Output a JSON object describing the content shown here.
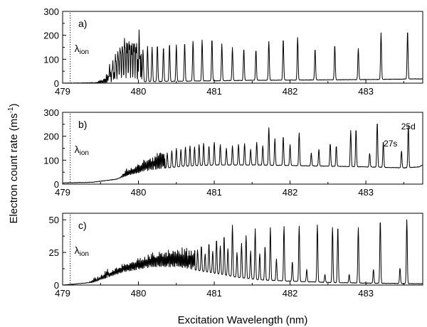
{
  "chart_data": [
    {
      "type": "line",
      "panel_tag": "a)",
      "ion_label": "λ",
      "ion_sub": "ion",
      "ion_position": 479.1,
      "xlim": [
        479,
        483.75
      ],
      "ylim": [
        0,
        300
      ],
      "xticks": [
        "479",
        "480",
        "481",
        "482",
        "483"
      ],
      "xtick_values": [
        479,
        480,
        481,
        482,
        483
      ],
      "yticks": [
        "0",
        "100",
        "200",
        "300"
      ],
      "ytick_values": [
        0,
        100,
        200,
        300
      ],
      "baseline": [
        [
          479.0,
          0
        ],
        [
          479.3,
          1
        ],
        [
          479.6,
          3
        ],
        [
          480.0,
          6
        ],
        [
          480.5,
          8
        ],
        [
          481.0,
          10
        ],
        [
          481.5,
          12
        ],
        [
          482.0,
          13
        ],
        [
          482.5,
          14
        ],
        [
          483.0,
          15
        ],
        [
          483.5,
          17
        ],
        [
          483.75,
          18
        ]
      ],
      "onset": 479.45,
      "dense_start": 479.6,
      "dense_end": 480.05,
      "peaks": [
        [
          479.62,
          55
        ],
        [
          479.66,
          70
        ],
        [
          479.7,
          90
        ],
        [
          479.73,
          115
        ],
        [
          479.76,
          125
        ],
        [
          479.79,
          135
        ],
        [
          479.82,
          150
        ],
        [
          479.85,
          130
        ],
        [
          479.88,
          140
        ],
        [
          479.91,
          120
        ],
        [
          479.94,
          135
        ],
        [
          479.97,
          115
        ],
        [
          480.01,
          150
        ],
        [
          480.06,
          140
        ],
        [
          480.12,
          155
        ],
        [
          480.18,
          150
        ],
        [
          480.25,
          160
        ],
        [
          480.33,
          150
        ],
        [
          480.41,
          165
        ],
        [
          480.5,
          160
        ],
        [
          480.61,
          170
        ],
        [
          480.72,
          175
        ],
        [
          480.84,
          180
        ],
        [
          480.97,
          185
        ],
        [
          481.1,
          165
        ],
        [
          481.24,
          150
        ],
        [
          481.39,
          145
        ],
        [
          481.55,
          140
        ],
        [
          481.72,
          175
        ],
        [
          481.91,
          185
        ],
        [
          482.1,
          190
        ],
        [
          482.33,
          145
        ],
        [
          482.59,
          160
        ],
        [
          482.9,
          145
        ],
        [
          483.2,
          210
        ],
        [
          483.55,
          220
        ]
      ]
    },
    {
      "type": "line",
      "panel_tag": "b)",
      "ion_label": "λ",
      "ion_sub": "ion",
      "ion_position": 479.1,
      "xlim": [
        479,
        483.75
      ],
      "ylim": [
        0,
        300
      ],
      "xticks": [
        "479",
        "480",
        "481",
        "482",
        "483"
      ],
      "xtick_values": [
        479,
        480,
        481,
        482,
        483
      ],
      "yticks": [
        "0",
        "100",
        "200",
        "300"
      ],
      "ytick_values": [
        0,
        100,
        200,
        300
      ],
      "annotations": [
        "25d",
        "27s"
      ],
      "baseline": [
        [
          479.0,
          5
        ],
        [
          479.4,
          8
        ],
        [
          479.7,
          20
        ],
        [
          479.9,
          40
        ],
        [
          480.1,
          55
        ],
        [
          480.3,
          65
        ],
        [
          480.6,
          75
        ],
        [
          481.0,
          80
        ],
        [
          481.5,
          80
        ],
        [
          482.0,
          78
        ],
        [
          482.5,
          75
        ],
        [
          483.0,
          72
        ],
        [
          483.5,
          68
        ],
        [
          483.7,
          72
        ],
        [
          483.75,
          80
        ]
      ],
      "onset": 479.75,
      "dense_start": 479.85,
      "dense_end": 480.35,
      "peaks": [
        [
          480.38,
          130
        ],
        [
          480.44,
          140
        ],
        [
          480.5,
          150
        ],
        [
          480.56,
          145
        ],
        [
          480.62,
          155
        ],
        [
          480.68,
          160
        ],
        [
          480.74,
          155
        ],
        [
          480.8,
          165
        ],
        [
          480.86,
          170
        ],
        [
          480.93,
          160
        ],
        [
          481.0,
          175
        ],
        [
          481.08,
          165
        ],
        [
          481.16,
          150
        ],
        [
          481.24,
          160
        ],
        [
          481.32,
          165
        ],
        [
          481.4,
          170
        ],
        [
          481.48,
          145
        ],
        [
          481.56,
          175
        ],
        [
          481.64,
          160
        ],
        [
          481.72,
          235
        ],
        [
          481.8,
          190
        ],
        [
          481.91,
          200
        ],
        [
          482.0,
          165
        ],
        [
          482.12,
          215
        ],
        [
          482.28,
          130
        ],
        [
          482.38,
          145
        ],
        [
          482.53,
          170
        ],
        [
          482.61,
          160
        ],
        [
          482.8,
          225
        ],
        [
          482.87,
          230
        ],
        [
          483.05,
          130
        ],
        [
          483.15,
          260
        ],
        [
          483.23,
          180
        ],
        [
          483.47,
          140
        ],
        [
          483.56,
          245
        ]
      ]
    },
    {
      "type": "line",
      "panel_tag": "c)",
      "ion_label": "λ",
      "ion_sub": "ion",
      "ion_position": 479.1,
      "xlim": [
        479,
        483.75
      ],
      "ylim": [
        0,
        55
      ],
      "xticks": [
        "479",
        "480",
        "481",
        "482",
        "483"
      ],
      "xtick_values": [
        479,
        480,
        481,
        482,
        483
      ],
      "yticks": [
        "0",
        "25",
        "50"
      ],
      "ytick_values": [
        0,
        25,
        50
      ],
      "baseline": [
        [
          479.0,
          0
        ],
        [
          479.2,
          1
        ],
        [
          479.4,
          2
        ],
        [
          479.6,
          6
        ],
        [
          479.8,
          10
        ],
        [
          480.0,
          12
        ],
        [
          480.2,
          14
        ],
        [
          480.5,
          14
        ],
        [
          480.8,
          11
        ],
        [
          481.0,
          9
        ],
        [
          481.3,
          6
        ],
        [
          481.6,
          4
        ],
        [
          482.0,
          3
        ],
        [
          482.5,
          2
        ],
        [
          483.0,
          1.5
        ],
        [
          483.75,
          1
        ]
      ],
      "onset": 479.3,
      "dense_start": 479.6,
      "dense_end": 480.75,
      "peaks": [
        [
          480.78,
          27
        ],
        [
          480.83,
          30
        ],
        [
          480.88,
          24
        ],
        [
          480.93,
          32
        ],
        [
          480.98,
          26
        ],
        [
          481.03,
          35
        ],
        [
          481.08,
          30
        ],
        [
          481.13,
          38
        ],
        [
          481.18,
          28
        ],
        [
          481.24,
          46
        ],
        [
          481.3,
          25
        ],
        [
          481.36,
          32
        ],
        [
          481.42,
          38
        ],
        [
          481.48,
          26
        ],
        [
          481.54,
          43
        ],
        [
          481.6,
          24
        ],
        [
          481.67,
          30
        ],
        [
          481.74,
          44
        ],
        [
          481.82,
          20
        ],
        [
          481.92,
          45
        ],
        [
          482.03,
          18
        ],
        [
          482.12,
          45
        ],
        [
          482.22,
          12
        ],
        [
          482.36,
          46
        ],
        [
          482.46,
          8
        ],
        [
          482.56,
          44
        ],
        [
          482.63,
          45
        ],
        [
          482.78,
          8
        ],
        [
          482.9,
          44
        ],
        [
          483.1,
          12
        ],
        [
          483.19,
          50
        ],
        [
          483.45,
          13
        ],
        [
          483.54,
          50
        ]
      ]
    }
  ],
  "x_axis_label": "Excitation Wavelength (nm)",
  "y_axis_label": "Electron count rate (ms",
  "y_axis_label_sup": "-1",
  "y_axis_label_end": ")"
}
